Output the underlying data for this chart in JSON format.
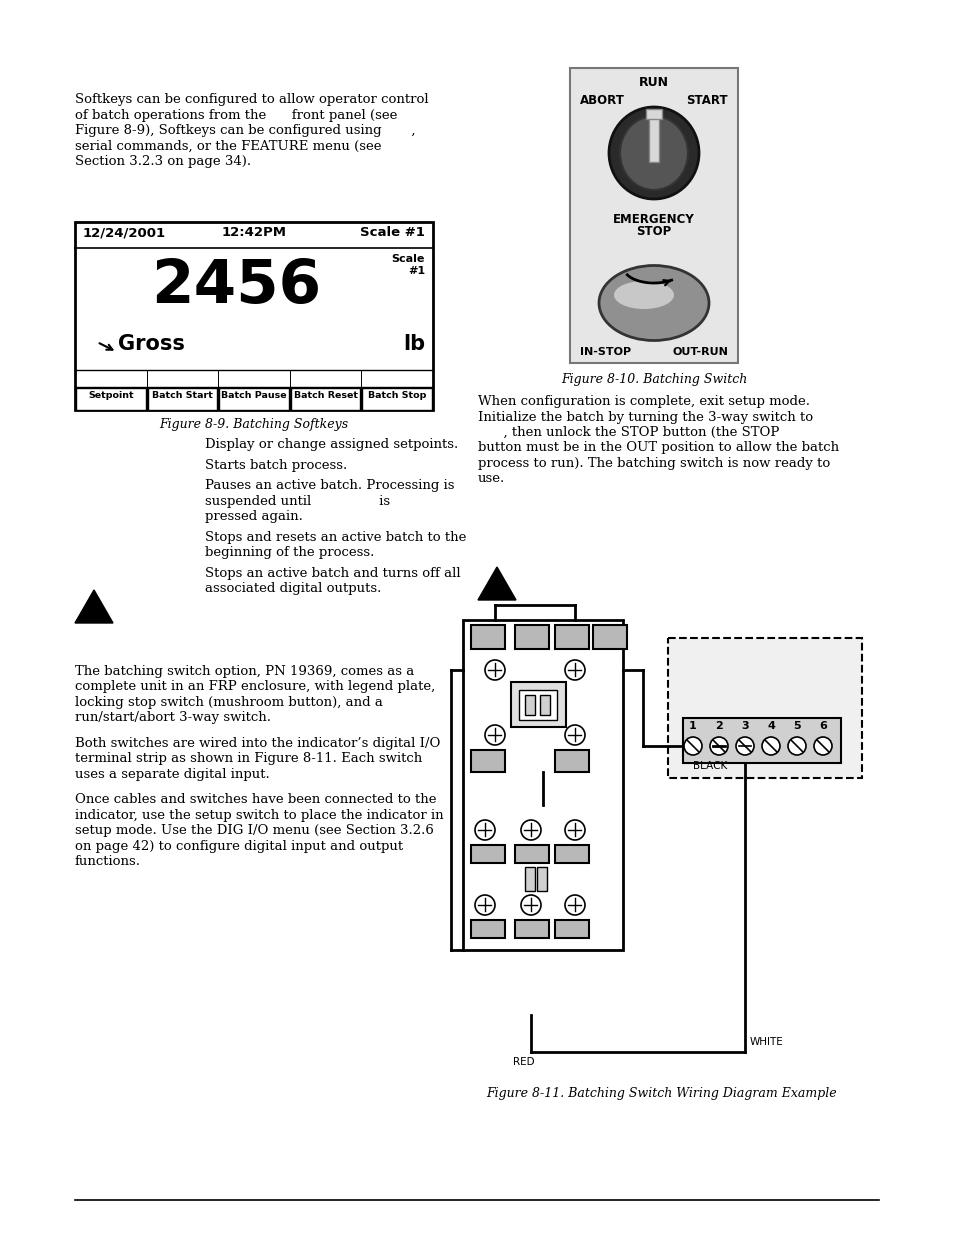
{
  "bg_color": "#ffffff",
  "intro_lines": [
    "Softkeys can be configured to allow operator control",
    "of batch operations from the      front panel (see",
    "Figure 8-9), Softkeys can be configured using       ,",
    "serial commands, or the FEATURE menu (see",
    "Section 3.2.3 on page 34)."
  ],
  "fig89_caption": "Figure 8-9. Batching Softkeys",
  "fig810_caption": "Figure 8-10. Batching Switch",
  "fig811_caption": "Figure 8-11. Batching Switch Wiring Diagram Example",
  "softkey_labels": [
    "Setpoint",
    "Batch Start",
    "Batch Pause",
    "Batch Reset",
    "Batch Stop"
  ],
  "softkey_descs": [
    [
      "Display or change assigned setpoints."
    ],
    [
      "Starts batch process."
    ],
    [
      "Pauses an active batch. Processing is",
      "suspended until                is",
      "pressed again."
    ],
    [
      "Stops and resets an active batch to the",
      "beginning of the process."
    ],
    [
      "Stops an active batch and turns off all",
      "associated digital outputs."
    ]
  ],
  "para1_lines": [
    "The batching switch option, PN 19369, comes as a",
    "complete unit in an FRP enclosure, with legend plate,",
    "locking stop switch (mushroom button), and a",
    "run/start/abort 3-way switch."
  ],
  "para2_lines": [
    "Both switches are wired into the indicator’s digital I/O",
    "terminal strip as shown in Figure 8-11. Each switch",
    "uses a separate digital input."
  ],
  "para3_lines": [
    "Once cables and switches have been connected to the",
    "indicator, use the setup switch to place the indicator in",
    "setup mode. Use the DIG I/O menu (see Section 3.2.6",
    "on page 42) to configure digital input and output",
    "functions."
  ],
  "config_lines": [
    "When configuration is complete, exit setup mode.",
    "Initialize the batch by turning the 3-way switch to",
    "      , then unlock the STOP button (the STOP",
    "button must be in the OUT position to allow the batch",
    "process to run). The batching switch is now ready to",
    "use."
  ],
  "display_date": "12/24/2001",
  "display_time": "12:42PM",
  "display_scale_hdr": "Scale #1",
  "display_value": "2456",
  "display_scale_small1": "Scale",
  "display_scale_small2": "#1",
  "display_mode": "Gross",
  "display_unit": "lb",
  "screw_labels": [
    "1",
    "2",
    "3",
    "4",
    "5",
    "6"
  ]
}
